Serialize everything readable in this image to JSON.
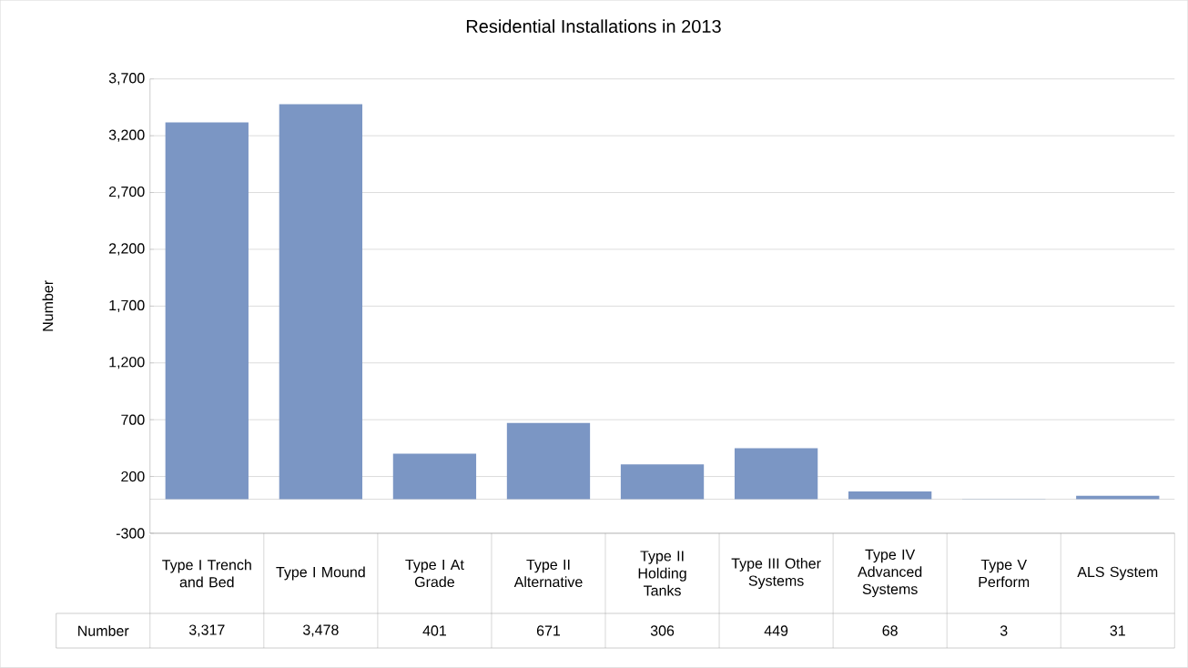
{
  "chart_data": {
    "type": "bar",
    "title": "Residential Installations in 2013",
    "ylabel": "Number",
    "categories": [
      "Type I Trench and Bed",
      "Type I Mound",
      "Type I At Grade",
      "Type II Alternative",
      "Type II Holding Tanks",
      "Type III Other Systems",
      "Type IV Advanced Systems",
      "Type V Perform",
      "ALS System"
    ],
    "series": [
      {
        "name": "Number",
        "color": "#7b96c4",
        "values": [
          3317,
          3478,
          401,
          671,
          306,
          449,
          68,
          3,
          31
        ],
        "value_labels": [
          "3,317",
          "3,478",
          "401",
          "671",
          "306",
          "449",
          "68",
          "3",
          "31"
        ]
      }
    ],
    "ylim": [
      -300,
      3700
    ],
    "yticks": [
      -300,
      200,
      700,
      {
        "value": 1200,
        "label": "1,200"
      },
      {
        "value": 1700,
        "label": "1,700"
      },
      {
        "value": 2200,
        "label": "2,200"
      },
      {
        "value": 2700,
        "label": "2,700"
      },
      {
        "value": 3200,
        "label": "3,200"
      },
      {
        "value": 3700,
        "label": "3,700"
      }
    ],
    "grid": "y"
  }
}
